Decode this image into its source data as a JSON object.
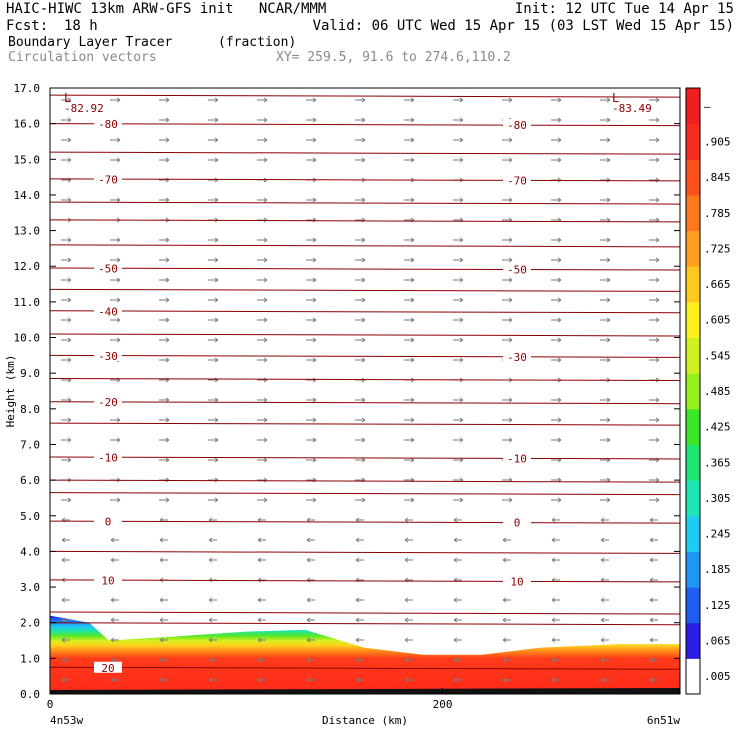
{
  "header": {
    "line1_left": "HAIC-HIWC 13km ARW-GFS init   NCAR/MMM",
    "line1_right": "Init: 12 UTC Tue 14 Apr 15",
    "fcst_label": "Fcst:",
    "fcst_value": "18 h",
    "valid": "Valid: 06 UTC Wed 15 Apr 15 (03 LST Wed 15 Apr 15)",
    "field_name": "Boundary Layer Tracer",
    "field_unit": "(fraction)",
    "vector_label": "Circulation vectors",
    "xy_range": "XY= 259.5, 91.6 to 274.6,110.2"
  },
  "chart_data": {
    "type": "heatmap",
    "title": "Boundary Layer Tracer",
    "ylabel": "Height (km)",
    "xlabel": "Distance (km)",
    "x_start_label": "4n53w",
    "x_end_label": "6n51w",
    "xticks": [
      0,
      200
    ],
    "xlim": [
      0,
      321
    ],
    "ylim": [
      0,
      17
    ],
    "yticks": [
      "0.0",
      "1.0",
      "2.0",
      "3.0",
      "4.0",
      "5.0",
      "6.0",
      "7.0",
      "8.0",
      "9.0",
      "10.0",
      "11.0",
      "12.0",
      "13.0",
      "14.0",
      "15.0",
      "16.0",
      "17.0"
    ],
    "colorbar": {
      "labels": [
        ".005",
        ".065",
        ".125",
        ".185",
        ".245",
        ".305",
        ".365",
        ".425",
        ".485",
        ".545",
        ".605",
        ".665",
        ".725",
        ".785",
        ".845",
        ".905",
        "–"
      ],
      "colors": [
        "#ffffff",
        "#2a1ee6",
        "#1e5ff0",
        "#1e96f5",
        "#1ecbf5",
        "#1ee6b4",
        "#1ee66e",
        "#3ce628",
        "#96f01e",
        "#d2f01e",
        "#fff01e",
        "#ffc81e",
        "#ffa01e",
        "#ff781e",
        "#ff501e",
        "#f52d1e",
        "#f01e1e"
      ]
    },
    "tracer_profile": {
      "x_km": [
        0,
        20,
        30,
        60,
        100,
        130,
        160,
        190,
        220,
        250,
        290,
        321
      ],
      "top_km": [
        2.2,
        2.0,
        1.5,
        1.6,
        1.75,
        1.8,
        1.3,
        1.1,
        1.1,
        1.3,
        1.4,
        1.4
      ]
    },
    "temperature_contours": {
      "unit": "C",
      "label_values": [
        -80,
        -70,
        -50,
        -40,
        -30,
        -20,
        -10,
        0,
        10,
        20
      ],
      "levels": [
        {
          "value": -80,
          "height_km": 16.0,
          "labels": [
            "-80",
            "-80"
          ]
        },
        {
          "value": -70,
          "height_km": 14.45,
          "labels": [
            "-70",
            "-70"
          ]
        },
        {
          "value": -50,
          "height_km": 11.95,
          "labels": [
            "-50",
            "-50"
          ]
        },
        {
          "value": -40,
          "height_km": 10.75,
          "labels": [
            "-40"
          ]
        },
        {
          "value": -30,
          "height_km": 9.5,
          "labels": [
            "-30",
            "-30"
          ]
        },
        {
          "value": -20,
          "height_km": 8.2,
          "labels": [
            "-20"
          ]
        },
        {
          "value": -10,
          "height_km": 6.65,
          "labels": [
            "-10",
            "-10"
          ]
        },
        {
          "value": 0,
          "height_km": 4.85,
          "labels": [
            "0",
            "0"
          ]
        },
        {
          "value": 10,
          "height_km": 3.2,
          "labels": [
            "10",
            "10"
          ]
        },
        {
          "value": 20,
          "height_km": 0.75,
          "labels": [
            "20"
          ]
        }
      ],
      "unlabeled_heights_km": [
        16.8,
        15.2,
        13.8,
        13.3,
        12.6,
        11.35,
        10.1,
        8.85,
        7.6,
        6.0,
        5.65,
        4.0,
        2.3,
        2.0
      ]
    },
    "lows": [
      {
        "symbol": "L",
        "value": "-82.92"
      },
      {
        "symbol": "L",
        "value": "-83.49"
      }
    ]
  }
}
